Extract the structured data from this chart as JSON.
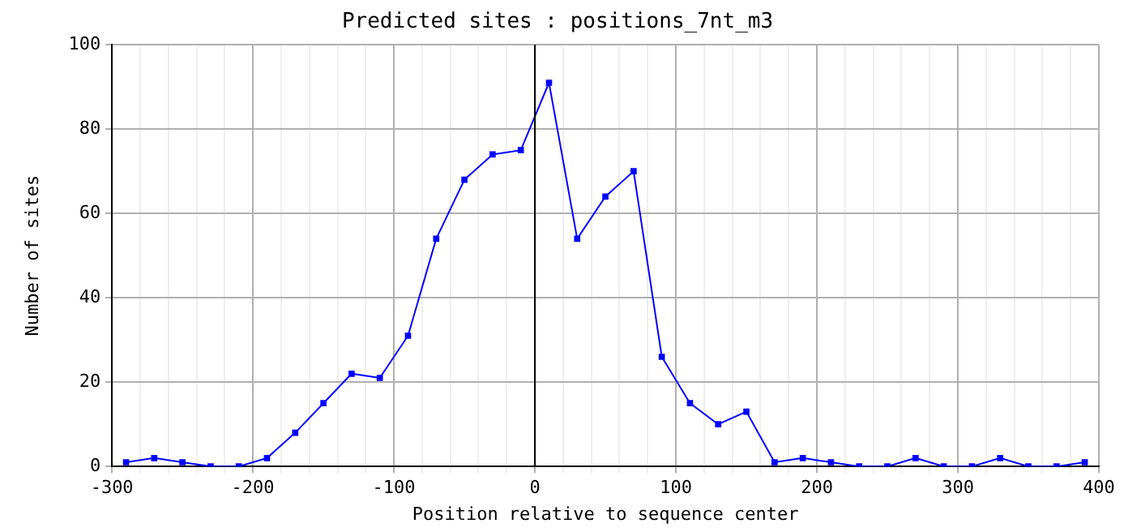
{
  "chart_data": {
    "type": "line",
    "title": "Predicted sites : positions_7nt_m3",
    "xlabel": "Position relative to sequence center",
    "ylabel": "Number of sites",
    "x": [
      -290,
      -270,
      -250,
      -230,
      -210,
      -190,
      -170,
      -150,
      -130,
      -110,
      -90,
      -70,
      -50,
      -30,
      -10,
      10,
      30,
      50,
      70,
      90,
      110,
      130,
      150,
      170,
      190,
      210,
      230,
      250,
      270,
      290,
      310,
      330,
      350,
      370,
      390
    ],
    "series": [
      {
        "color": "#0000ff",
        "values": [
          1,
          2,
          1,
          0,
          0,
          2,
          8,
          15,
          22,
          21,
          31,
          54,
          68,
          74,
          75,
          91,
          54,
          64,
          70,
          26,
          15,
          10,
          13,
          1,
          2,
          1,
          0,
          0,
          2,
          0,
          0,
          2,
          0,
          0,
          1
        ]
      }
    ],
    "xlim": [
      -300,
      400
    ],
    "xticks": [
      -300,
      {
        "value": -280,
        "label": null
      },
      {
        "value": -260,
        "label": null
      },
      {
        "value": -240,
        "label": null
      },
      {
        "value": -220,
        "label": null
      },
      -200,
      {
        "value": -180,
        "label": null
      },
      {
        "value": -160,
        "label": null
      },
      {
        "value": -140,
        "label": null
      },
      {
        "value": -120,
        "label": null
      },
      -100,
      {
        "value": -80,
        "label": null
      },
      {
        "value": -60,
        "label": null
      },
      {
        "value": -40,
        "label": null
      },
      {
        "value": -20,
        "label": null
      },
      0,
      {
        "value": 20,
        "label": null
      },
      {
        "value": 40,
        "label": null
      },
      {
        "value": 60,
        "label": null
      },
      {
        "value": 80,
        "label": null
      },
      100,
      {
        "value": 120,
        "label": null
      },
      {
        "value": 140,
        "label": null
      },
      {
        "value": 160,
        "label": null
      },
      {
        "value": 180,
        "label": null
      },
      200,
      {
        "value": 220,
        "label": null
      },
      {
        "value": 240,
        "label": null
      },
      {
        "value": 260,
        "label": null
      },
      {
        "value": 280,
        "label": null
      },
      300,
      {
        "value": 320,
        "label": null
      },
      {
        "value": 340,
        "label": null
      },
      {
        "value": 360,
        "label": null
      },
      {
        "value": 380,
        "label": null
      },
      400
    ],
    "ylim": [
      0,
      100
    ],
    "yticks": [
      0,
      20,
      40,
      60,
      80,
      100
    ],
    "ref_lines": [
      {
        "axis": "x",
        "value": 0,
        "color": "#000000"
      }
    ],
    "grid": true,
    "legend": false,
    "marker": "square",
    "line_style": "solid"
  }
}
